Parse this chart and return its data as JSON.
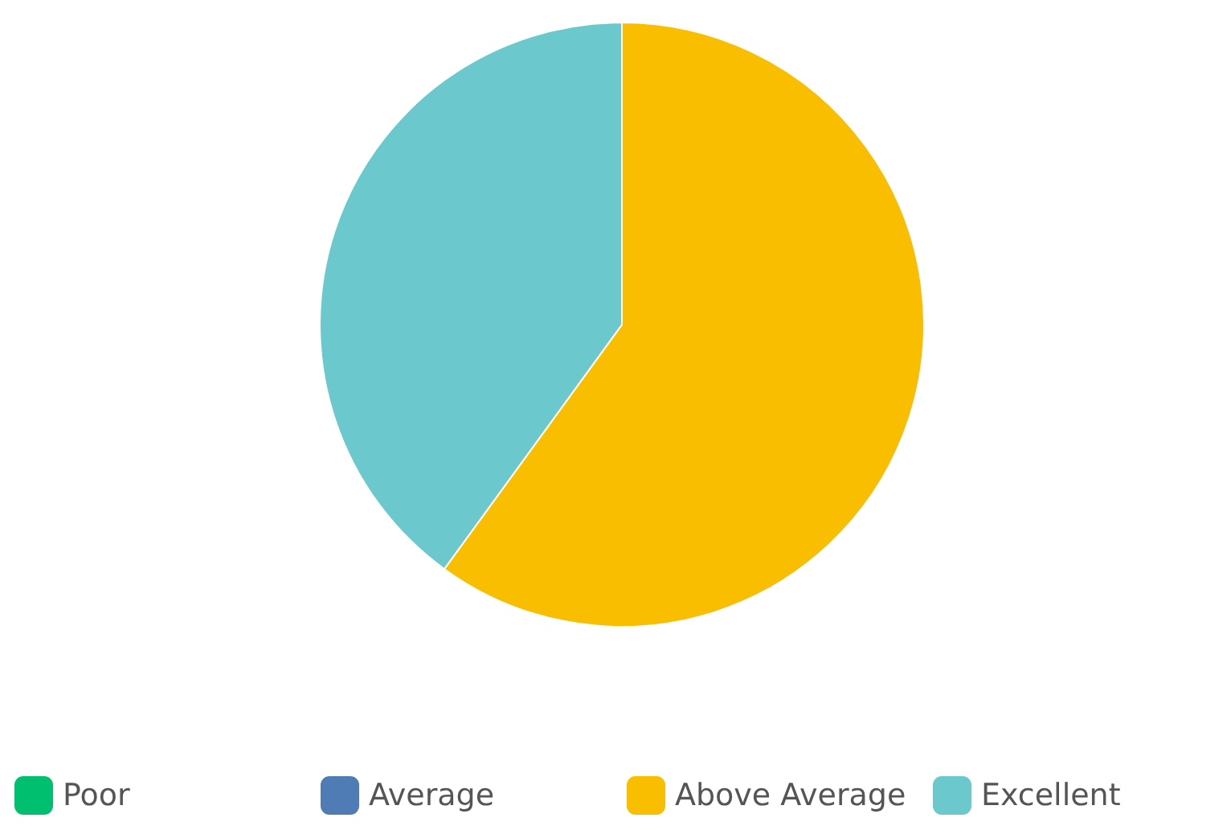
{
  "chart_data": {
    "type": "pie",
    "categories": [
      "Poor",
      "Average",
      "Above Average",
      "Excellent"
    ],
    "values": [
      0,
      0,
      60,
      40
    ],
    "colors": [
      "#00bf6f",
      "#507cb6",
      "#f9be00",
      "#6bc8cd"
    ],
    "legend": "bottom"
  }
}
